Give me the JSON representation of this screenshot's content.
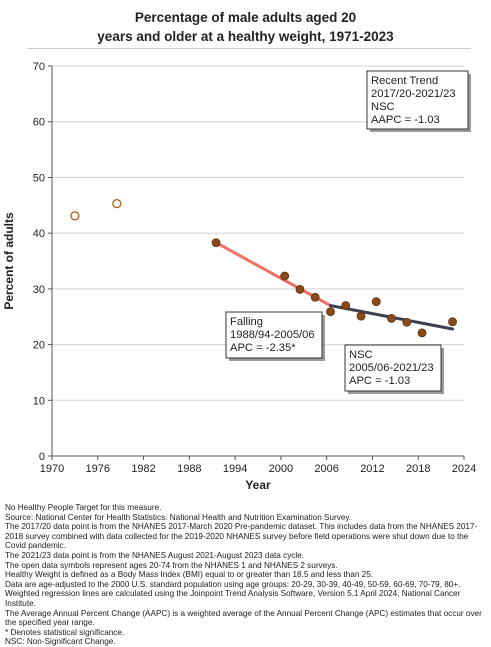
{
  "chart_data": {
    "type": "scatter",
    "title_line1": "Percentage of male adults aged 20",
    "title_line2": "years and older at a healthy weight, 1971-2023",
    "xlabel": "Year",
    "ylabel": "Percent of adults",
    "xlim": [
      1970,
      2024
    ],
    "ylim": [
      0,
      70
    ],
    "xticks": [
      "1970",
      "1976",
      "1982",
      "1988",
      "1994",
      "2000",
      "2006",
      "2012",
      "2018",
      "2024"
    ],
    "yticks": [
      "0",
      "10",
      "20",
      "30",
      "40",
      "50",
      "60",
      "70"
    ],
    "open_points": [
      {
        "x": 1973,
        "y": 43.1
      },
      {
        "x": 1978.5,
        "y": 45.3
      }
    ],
    "filled_points": [
      {
        "x": 1991.5,
        "y": 38.3
      },
      {
        "x": 2000.5,
        "y": 32.3
      },
      {
        "x": 2002.5,
        "y": 29.9
      },
      {
        "x": 2004.5,
        "y": 28.5
      },
      {
        "x": 2006.5,
        "y": 25.9
      },
      {
        "x": 2008.5,
        "y": 27.0
      },
      {
        "x": 2010.5,
        "y": 25.1
      },
      {
        "x": 2012.5,
        "y": 27.7
      },
      {
        "x": 2014.5,
        "y": 24.7
      },
      {
        "x": 2016.5,
        "y": 24.0
      },
      {
        "x": 2018.5,
        "y": 22.1
      },
      {
        "x": 2022.5,
        "y": 24.1
      }
    ],
    "trend_lines": [
      {
        "color": "#f07066",
        "points": [
          {
            "x": 1991.5,
            "y": 38.3
          },
          {
            "x": 2006.5,
            "y": 27.0
          }
        ]
      },
      {
        "color": "#3a4150",
        "points": [
          {
            "x": 2006.5,
            "y": 27.0
          },
          {
            "x": 2022.5,
            "y": 22.8
          }
        ]
      }
    ],
    "annotations": [
      {
        "id": "recent",
        "lines": [
          "Recent Trend",
          "2017/20-2021/23",
          "NSC",
          "AAPC = -1.03"
        ]
      },
      {
        "id": "falling",
        "lines": [
          "Falling",
          "1988/94-2005/06",
          "APC = -2.35*"
        ]
      },
      {
        "id": "nsc",
        "lines": [
          "NSC",
          "2005/06-2021/23",
          "APC = -1.03"
        ]
      }
    ],
    "grid": true,
    "colors": {
      "point_fill": "#8b4a1a",
      "open_point_stroke": "#a8560f",
      "grid": "#d0d0d0"
    }
  },
  "notes": [
    "No Healthy People Target for this measure.",
    "Source: National Center for Health Statistics. National Health and Nutrition Examination Survey.",
    "The 2017/20 data point is from the NHANES 2017-March 2020 Pre-pandemic dataset. This includes data from the NHANES 2017-2018 survey combined with data collected for the 2019-2020 NHANES survey before field operations were shut down due to the Covid pandemic.",
    "The 2021/23 data point is from the NHANES August 2021-August 2023 data cycle.",
    "The open data symbols represent ages 20-74 from the NHANES 1 and NHANES 2 surveys.",
    "Healthy Weight is defined as a Body Mass Index (BMI) equal to or greater than 18.5 and less than 25.",
    "Data are age-adjusted to the 2000 U.S. standard population using age groups: 20-29, 30-39, 40-49, 50-59, 60-69, 70-79, 80+.",
    "Weighted regression lines are calculated using the Joinpoint Trend Analysis Software, Version 5.1 April 2024, National Cancer Institute.",
    "The Average Annual Percent Change (AAPC) is a weighted average of the Annual Percent Change (APC) estimates that occur over the specified year range.",
    "* Denotes statistical significance.",
    "NSC: Non-Significant Change."
  ]
}
